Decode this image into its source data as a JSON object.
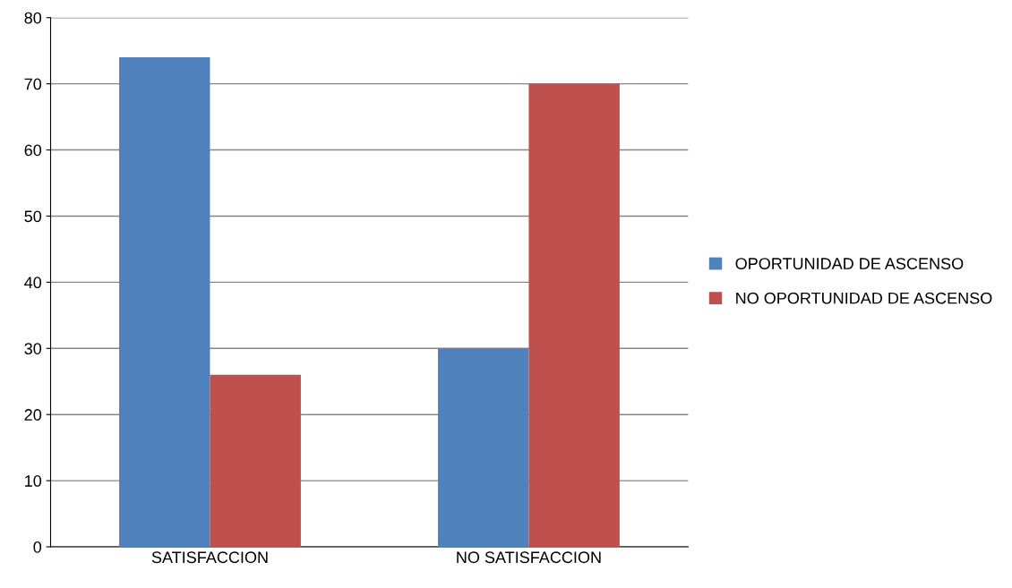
{
  "chart_data": {
    "type": "bar",
    "categories": [
      "SATISFACCION",
      "NO SATISFACCION"
    ],
    "series": [
      {
        "name": "OPORTUNIDAD DE ASCENSO",
        "color": "#4f81bd",
        "values": [
          74,
          30
        ]
      },
      {
        "name": "NO OPORTUNIDAD DE ASCENSO",
        "color": "#c0504d",
        "values": [
          26,
          70
        ]
      }
    ],
    "ylim": [
      0,
      80
    ],
    "yticks": [
      0,
      10,
      20,
      30,
      40,
      50,
      60,
      70,
      80
    ],
    "grid": "y",
    "legend": "right"
  }
}
